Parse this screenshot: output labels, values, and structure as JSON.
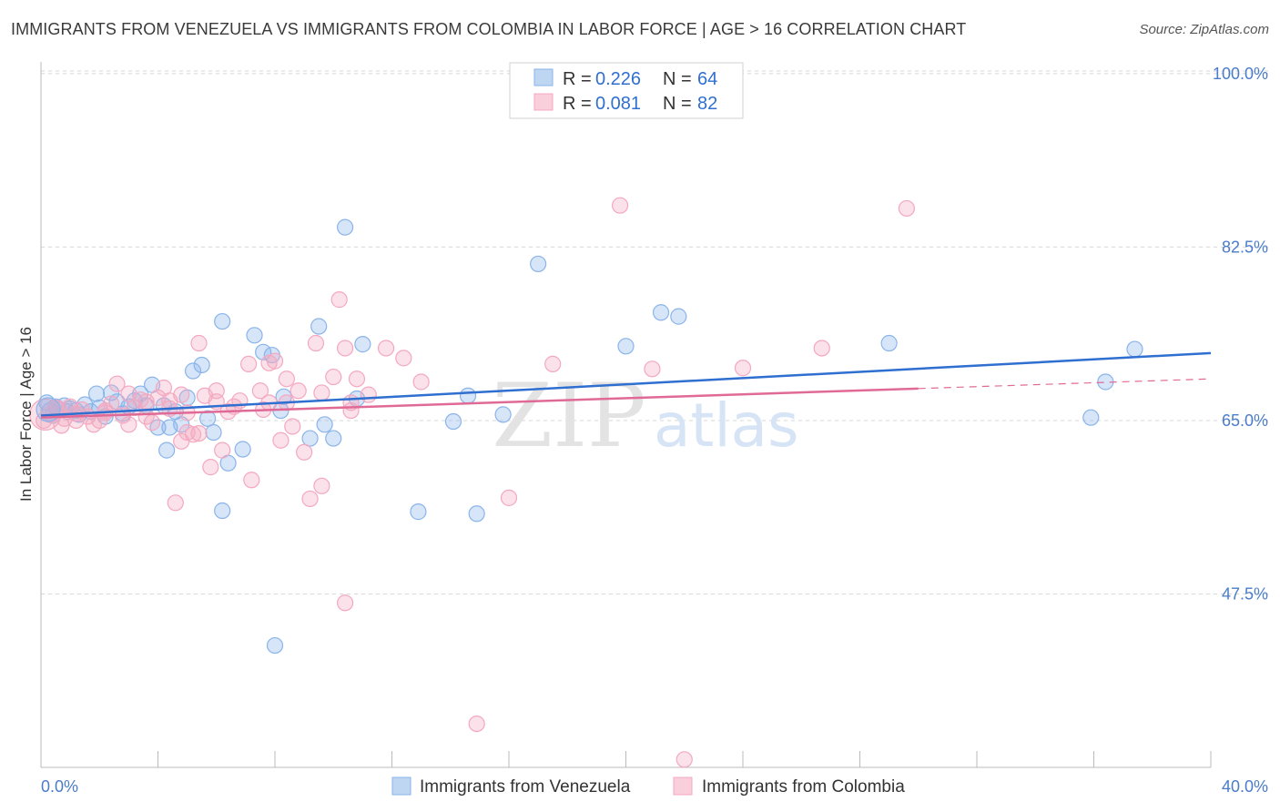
{
  "title": "IMMIGRANTS FROM VENEZUELA VS IMMIGRANTS FROM COLOMBIA IN LABOR FORCE | AGE > 16 CORRELATION CHART",
  "source": "Source: ZipAtlas.com",
  "watermark": {
    "zip": "ZIP",
    "atlas": "atlas"
  },
  "chart_data": {
    "type": "scatter",
    "ylabel": "In Labor Force | Age > 16",
    "xlim": [
      0,
      40
    ],
    "ylim": [
      30,
      101
    ],
    "x_tick_labels": [
      "0.0%",
      "40.0%"
    ],
    "y_ticks": [
      47.5,
      65.0,
      82.5,
      100.0
    ],
    "y_tick_labels": [
      "47.5%",
      "65.0%",
      "82.5%",
      "100.0%"
    ],
    "grid": true,
    "legend_position": "top-center",
    "legend": [
      {
        "r_label": "R = ",
        "r_value": "0.226",
        "n_label": "N = ",
        "n_value": "64"
      },
      {
        "r_label": "R = ",
        "r_value": "0.081",
        "n_label": "N = ",
        "n_value": "82"
      }
    ],
    "series": [
      {
        "name": "Immigrants from Venezuela",
        "color": "#8ab4ea",
        "line_color": "#2f6fd0",
        "trend": {
          "x0": 0,
          "y0": 65.5,
          "x1": 40,
          "y1": 71.8,
          "dash_from": null
        },
        "points": [
          [
            0.2,
            66.8
          ],
          [
            0.3,
            66.0
          ],
          [
            0.4,
            65.5
          ],
          [
            0.5,
            66.4
          ],
          [
            0.6,
            66.1
          ],
          [
            0.8,
            66.5
          ],
          [
            0.9,
            65.9
          ],
          [
            1.0,
            66.2
          ],
          [
            1.2,
            66.0
          ],
          [
            1.3,
            65.6
          ],
          [
            1.5,
            66.6
          ],
          [
            1.7,
            65.9
          ],
          [
            1.9,
            67.7
          ],
          [
            2.0,
            66.3
          ],
          [
            2.2,
            65.4
          ],
          [
            2.4,
            67.8
          ],
          [
            2.6,
            66.9
          ],
          [
            2.8,
            65.7
          ],
          [
            3.0,
            66.4
          ],
          [
            3.2,
            67.0
          ],
          [
            3.4,
            67.7
          ],
          [
            3.6,
            66.5
          ],
          [
            3.8,
            68.6
          ],
          [
            4.0,
            64.3
          ],
          [
            4.2,
            66.5
          ],
          [
            4.4,
            64.3
          ],
          [
            4.6,
            65.9
          ],
          [
            4.8,
            64.6
          ],
          [
            5.0,
            67.3
          ],
          [
            5.2,
            70.0
          ],
          [
            5.5,
            70.6
          ],
          [
            5.7,
            65.2
          ],
          [
            5.9,
            63.8
          ],
          [
            6.2,
            75.0
          ],
          [
            6.4,
            60.7
          ],
          [
            6.2,
            55.9
          ],
          [
            6.9,
            62.1
          ],
          [
            7.3,
            73.6
          ],
          [
            7.6,
            71.9
          ],
          [
            7.9,
            71.6
          ],
          [
            8.3,
            67.4
          ],
          [
            8.0,
            42.3
          ],
          [
            9.2,
            63.2
          ],
          [
            9.5,
            74.5
          ],
          [
            9.7,
            64.6
          ],
          [
            10.0,
            63.2
          ],
          [
            10.4,
            84.5
          ],
          [
            10.8,
            67.2
          ],
          [
            11.0,
            72.7
          ],
          [
            12.9,
            55.8
          ],
          [
            14.1,
            64.9
          ],
          [
            14.6,
            67.5
          ],
          [
            14.9,
            55.6
          ],
          [
            15.8,
            65.6
          ],
          [
            17.0,
            80.8
          ],
          [
            20.0,
            72.5
          ],
          [
            21.2,
            75.9
          ],
          [
            21.8,
            75.5
          ],
          [
            29.0,
            72.8
          ],
          [
            35.9,
            65.3
          ],
          [
            36.4,
            68.9
          ],
          [
            37.4,
            72.2
          ],
          [
            8.2,
            66.0
          ],
          [
            4.3,
            62.0
          ]
        ]
      },
      {
        "name": "Immigrants from Colombia",
        "color": "#f4a8c0",
        "line_color": "#e06a96",
        "trend": {
          "x0": 0,
          "y0": 65.3,
          "x1": 40,
          "y1": 69.2,
          "dash_from": 30
        },
        "points": [
          [
            0.1,
            65.0
          ],
          [
            0.3,
            65.6
          ],
          [
            0.5,
            66.3
          ],
          [
            0.7,
            64.5
          ],
          [
            0.8,
            65.2
          ],
          [
            1.0,
            66.4
          ],
          [
            1.2,
            65.7
          ],
          [
            1.4,
            66.1
          ],
          [
            1.6,
            65.4
          ],
          [
            1.8,
            64.6
          ],
          [
            2.0,
            65.0
          ],
          [
            2.2,
            65.8
          ],
          [
            2.4,
            66.7
          ],
          [
            2.6,
            68.7
          ],
          [
            2.8,
            65.5
          ],
          [
            3.0,
            67.7
          ],
          [
            3.2,
            66.3
          ],
          [
            3.4,
            67.1
          ],
          [
            3.6,
            66.9
          ],
          [
            3.8,
            64.8
          ],
          [
            4.0,
            67.3
          ],
          [
            4.2,
            68.3
          ],
          [
            4.4,
            66.2
          ],
          [
            4.6,
            56.7
          ],
          [
            4.8,
            67.6
          ],
          [
            5.0,
            63.8
          ],
          [
            5.2,
            63.6
          ],
          [
            5.4,
            72.8
          ],
          [
            5.6,
            67.5
          ],
          [
            5.8,
            60.3
          ],
          [
            6.0,
            66.9
          ],
          [
            6.2,
            62.0
          ],
          [
            6.4,
            65.9
          ],
          [
            6.8,
            67.0
          ],
          [
            7.1,
            70.7
          ],
          [
            7.2,
            59.0
          ],
          [
            7.5,
            68.0
          ],
          [
            7.6,
            66.1
          ],
          [
            7.8,
            66.8
          ],
          [
            8.0,
            71.0
          ],
          [
            8.2,
            63.0
          ],
          [
            8.4,
            69.2
          ],
          [
            8.6,
            64.4
          ],
          [
            8.8,
            68.0
          ],
          [
            9.0,
            61.8
          ],
          [
            9.2,
            57.1
          ],
          [
            9.4,
            72.8
          ],
          [
            9.6,
            58.4
          ],
          [
            10.0,
            69.4
          ],
          [
            10.2,
            77.2
          ],
          [
            10.4,
            72.3
          ],
          [
            10.6,
            66.0
          ],
          [
            10.8,
            69.2
          ],
          [
            11.2,
            67.6
          ],
          [
            11.8,
            72.3
          ],
          [
            12.4,
            71.3
          ],
          [
            13.0,
            68.9
          ],
          [
            14.9,
            34.4
          ],
          [
            16.0,
            57.2
          ],
          [
            17.5,
            70.7
          ],
          [
            19.8,
            86.7
          ],
          [
            20.9,
            70.2
          ],
          [
            24.0,
            70.3
          ],
          [
            26.7,
            72.3
          ],
          [
            29.6,
            86.4
          ],
          [
            10.4,
            46.6
          ],
          [
            22.0,
            30.8
          ],
          [
            7.8,
            70.8
          ],
          [
            6.0,
            68.0
          ],
          [
            5.0,
            65.8
          ],
          [
            3.6,
            65.4
          ],
          [
            2.2,
            66.0
          ],
          [
            1.2,
            65.0
          ],
          [
            0.6,
            66.2
          ],
          [
            4.4,
            67.0
          ],
          [
            8.4,
            66.8
          ],
          [
            9.6,
            67.8
          ],
          [
            10.6,
            66.8
          ],
          [
            3.0,
            64.6
          ],
          [
            4.8,
            62.9
          ],
          [
            6.6,
            66.4
          ],
          [
            5.4,
            63.7
          ]
        ]
      }
    ]
  }
}
